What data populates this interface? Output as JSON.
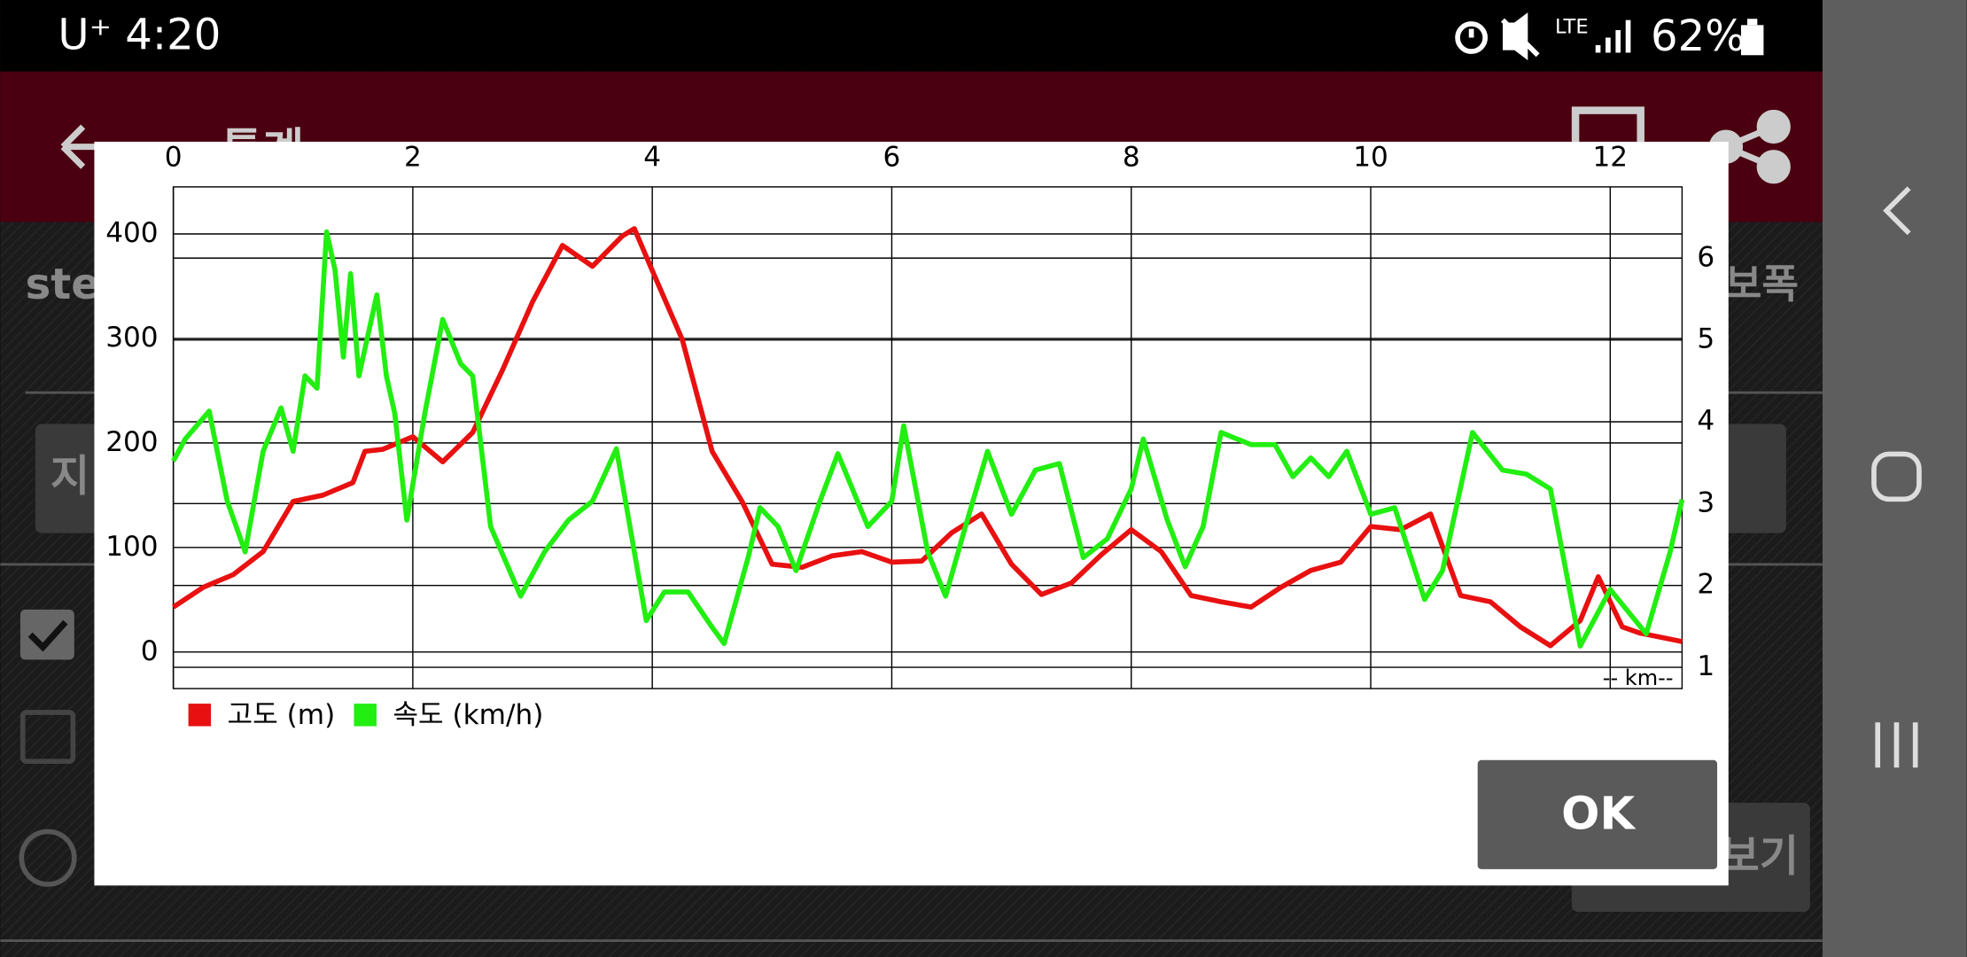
{
  "status_bar": {
    "carrier_time": "U⁺ 4:20",
    "network": "LTE",
    "battery": "62%"
  },
  "screen": {
    "title": "통계",
    "row_label": "step",
    "row_label_right": "보폭",
    "button_left": "지",
    "button_bottom": "보기"
  },
  "dialog": {
    "ok": "OK"
  },
  "chart_data": {
    "type": "line",
    "xlabel": "-- km--",
    "xlim": [
      0,
      12.6
    ],
    "xticks": [
      0,
      2,
      4,
      6,
      8,
      10,
      12
    ],
    "ylim": [
      -35,
      445
    ],
    "yticks": [
      0,
      100,
      200,
      300,
      400
    ],
    "y2lim": [
      0.74,
      6.87
    ],
    "y2ticks": [
      1,
      2,
      3,
      4,
      5,
      6
    ],
    "grid": true,
    "series": [
      {
        "name": "고도 (m)",
        "color": "#e81010",
        "axis": "y",
        "x": [
          0,
          0.25,
          0.5,
          0.75,
          1,
          1.25,
          1.5,
          1.6,
          1.75,
          2,
          2.25,
          2.5,
          2.75,
          3,
          3.25,
          3.5,
          3.75,
          3.85,
          4,
          4.25,
          4.5,
          4.75,
          5,
          5.25,
          5.5,
          5.75,
          6,
          6.25,
          6.5,
          6.75,
          7,
          7.25,
          7.5,
          7.75,
          8,
          8.25,
          8.5,
          8.75,
          9,
          9.25,
          9.5,
          9.75,
          10,
          10.25,
          10.5,
          10.75,
          11,
          11.25,
          11.5,
          11.75,
          11.9,
          12.1,
          12.25,
          12.6
        ],
        "values": [
          43,
          62,
          74,
          96,
          144,
          150,
          162,
          192,
          194,
          206,
          182,
          210,
          270,
          335,
          389,
          369,
          398,
          405,
          365,
          299,
          192,
          144,
          84,
          81,
          92,
          96,
          86,
          87,
          114,
          132,
          84,
          55,
          66,
          93,
          117,
          96,
          54,
          48,
          43,
          62,
          78,
          86,
          120,
          117,
          132,
          54,
          48,
          24,
          6,
          30,
          72,
          24,
          18,
          10
        ]
      },
      {
        "name": "속도 (km/h)",
        "color": "#22ee11",
        "axis": "y2",
        "x": [
          0,
          0.1,
          0.3,
          0.45,
          0.6,
          0.75,
          0.9,
          1,
          1.1,
          1.2,
          1.28,
          1.35,
          1.42,
          1.48,
          1.55,
          1.7,
          1.78,
          1.85,
          1.95,
          2.1,
          2.25,
          2.4,
          2.5,
          2.65,
          2.9,
          3.1,
          3.3,
          3.5,
          3.7,
          3.85,
          3.95,
          4.1,
          4.3,
          4.5,
          4.6,
          4.8,
          4.9,
          5.05,
          5.2,
          5.4,
          5.55,
          5.8,
          6,
          6.1,
          6.3,
          6.45,
          6.6,
          6.8,
          7,
          7.2,
          7.4,
          7.6,
          7.8,
          8,
          8.1,
          8.3,
          8.45,
          8.6,
          8.75,
          9,
          9.2,
          9.35,
          9.5,
          9.65,
          9.8,
          10,
          10.2,
          10.45,
          10.6,
          10.85,
          11.1,
          11.3,
          11.5,
          11.75,
          12,
          12.3,
          12.5,
          12.6
        ],
        "values": [
          3.52,
          3.79,
          4.13,
          3.03,
          2.41,
          3.64,
          4.17,
          3.64,
          4.56,
          4.41,
          6.32,
          5.86,
          4.79,
          5.81,
          4.56,
          5.55,
          4.56,
          4.1,
          2.8,
          4.1,
          5.25,
          4.71,
          4.56,
          2.72,
          1.87,
          2.41,
          2.8,
          3.03,
          3.67,
          2.41,
          1.57,
          1.92,
          1.92,
          1.49,
          1.29,
          2.34,
          2.95,
          2.72,
          2.18,
          3.03,
          3.61,
          2.72,
          3.03,
          3.95,
          2.41,
          1.87,
          2.64,
          3.64,
          2.87,
          3.41,
          3.49,
          2.34,
          2.57,
          3.18,
          3.79,
          2.8,
          2.23,
          2.72,
          3.87,
          3.72,
          3.72,
          3.33,
          3.56,
          3.33,
          3.64,
          2.87,
          2.95,
          1.83,
          2.18,
          3.87,
          3.41,
          3.36,
          3.18,
          1.26,
          1.95,
          1.41,
          2.41,
          3.05
        ]
      }
    ]
  }
}
